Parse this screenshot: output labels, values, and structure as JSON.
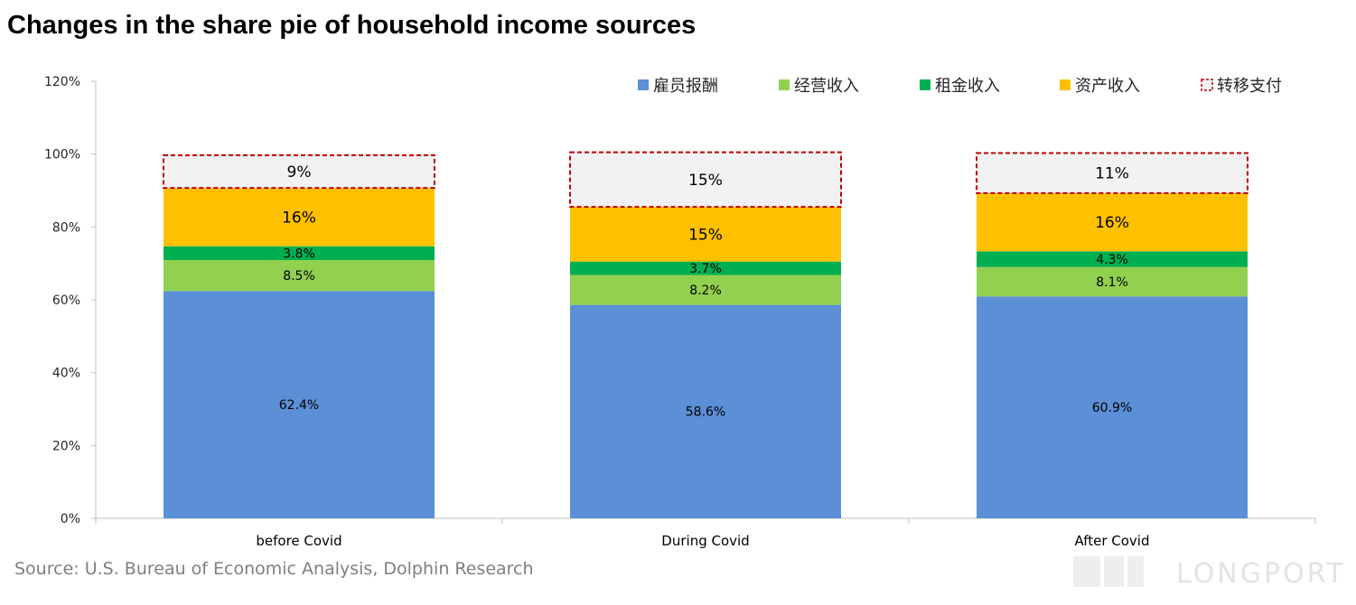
{
  "title": "Changes in the share pie of household income sources",
  "source": "Source: U.S. Bureau of Economic Analysis, Dolphin Research",
  "watermark": "LONGPORT",
  "chart_data": {
    "type": "bar",
    "stacked": true,
    "categories": [
      "before Covid",
      "During Covid",
      "After Covid"
    ],
    "ylim": [
      0,
      120
    ],
    "yticks": [
      "0%",
      "20%",
      "40%",
      "60%",
      "80%",
      "100%",
      "120%"
    ],
    "legend_position": "top-right",
    "series": [
      {
        "name": "雇员报酬",
        "color": "#5b8fd6",
        "values": [
          62.4,
          58.6,
          60.9
        ],
        "labels": [
          "62.4%",
          "58.6%",
          "60.9%"
        ]
      },
      {
        "name": "经营收入",
        "color": "#92d050",
        "values": [
          8.5,
          8.2,
          8.1
        ],
        "labels": [
          "8.5%",
          "8.2%",
          "8.1%"
        ]
      },
      {
        "name": "租金收入",
        "color": "#00b050",
        "values": [
          3.8,
          3.7,
          4.3
        ],
        "labels": [
          "3.8%",
          "3.7%",
          "4.3%"
        ]
      },
      {
        "name": "资产收入",
        "color": "#ffc000",
        "values": [
          16,
          15,
          16
        ],
        "labels": [
          "16%",
          "15%",
          "16%"
        ]
      },
      {
        "name": "转移支付",
        "color": "#f2f2f2",
        "border": "#c00000",
        "dashed": true,
        "values": [
          9,
          15,
          11
        ],
        "labels": [
          "9%",
          "15%",
          "11%"
        ]
      }
    ]
  }
}
